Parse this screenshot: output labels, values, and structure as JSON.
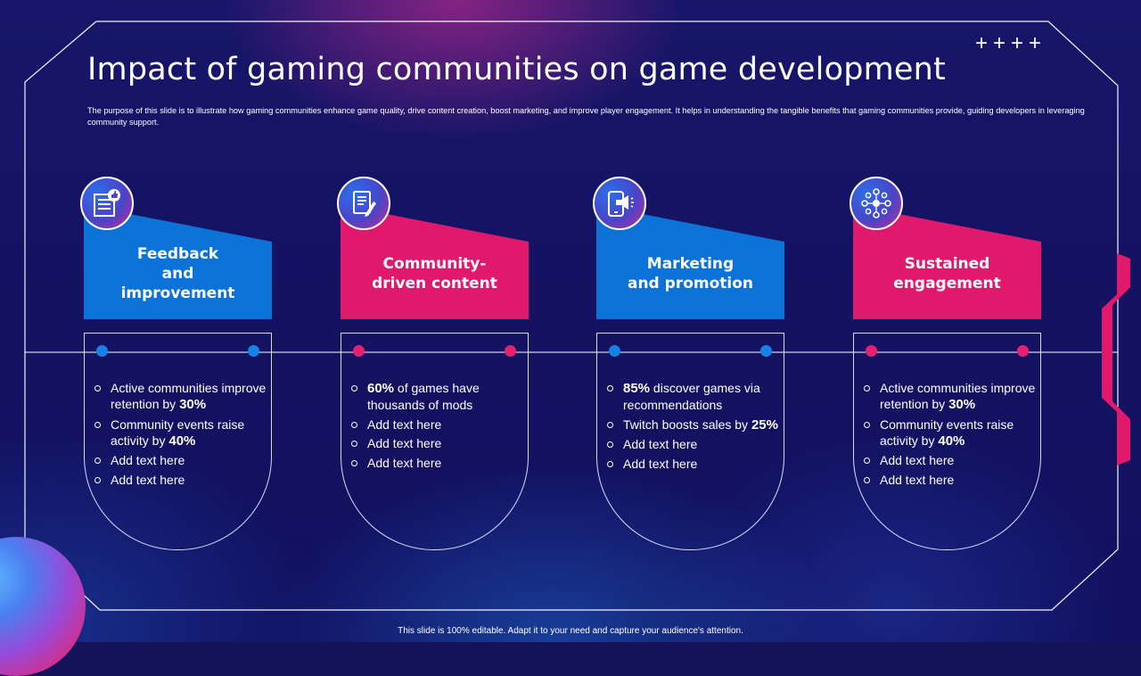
{
  "slide": {
    "title": "Impact of gaming communities on game development",
    "subtitle": "The purpose of this slide is to illustrate how gaming communities enhance game quality, drive content creation, boost marketing, and improve player engagement. It helps in understanding the tangible benefits that gaming communities provide, guiding developers in leveraging community support.",
    "decor_plus": "++++",
    "footer": "This slide is 100% editable. Adapt it to your need and capture your audience's attention."
  },
  "colors": {
    "background": "#14135a",
    "blue": "#0b72d8",
    "pink": "#e0196c",
    "frame": "#ffffff"
  },
  "columns": [
    {
      "title_lines": [
        "Feedback",
        "and",
        "improvement"
      ],
      "color": "blue",
      "icon": "feedback-like-icon",
      "points": [
        {
          "pre": "Active communities improve retention by ",
          "bold": "30%",
          "post": ""
        },
        {
          "pre": "Community events raise activity by ",
          "bold": "40%",
          "post": ""
        },
        {
          "pre": "Add text here",
          "bold": "",
          "post": ""
        },
        {
          "pre": "Add text here",
          "bold": "",
          "post": ""
        }
      ]
    },
    {
      "title_lines": [
        "Community-",
        "driven content"
      ],
      "color": "pink",
      "icon": "document-edit-icon",
      "points": [
        {
          "pre": "",
          "bold": "60%",
          "post": " of games have thousands of mods"
        },
        {
          "pre": "Add text here",
          "bold": "",
          "post": ""
        },
        {
          "pre": "Add text here",
          "bold": "",
          "post": ""
        },
        {
          "pre": "Add text here",
          "bold": "",
          "post": ""
        }
      ]
    },
    {
      "title_lines": [
        "Marketing",
        "and promotion"
      ],
      "color": "blue",
      "icon": "phone-megaphone-icon",
      "points": [
        {
          "pre": "",
          "bold": "85%",
          "post": " discover games via recommendations"
        },
        {
          "pre": "Twitch boosts sales by ",
          "bold": "25%",
          "post": ""
        },
        {
          "pre": "Add text here",
          "bold": "",
          "post": ""
        },
        {
          "pre": "Add text here",
          "bold": "",
          "post": ""
        }
      ]
    },
    {
      "title_lines": [
        "Sustained",
        "engagement"
      ],
      "color": "pink",
      "icon": "community-network-icon",
      "points": [
        {
          "pre": "Active communities improve retention by ",
          "bold": "30%",
          "post": ""
        },
        {
          "pre": "Community events raise activity by ",
          "bold": "40%",
          "post": ""
        },
        {
          "pre": "Add text here",
          "bold": "",
          "post": ""
        },
        {
          "pre": "Add text here",
          "bold": "",
          "post": ""
        }
      ]
    }
  ]
}
